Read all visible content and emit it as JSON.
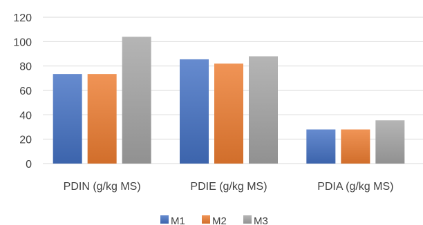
{
  "chart_data": {
    "type": "bar",
    "title": "",
    "xlabel": "",
    "ylabel": "",
    "categories": [
      "PDIN (g/kg MS)",
      "PDIE (g/kg MS)",
      "PDIA (g/kg MS)"
    ],
    "series": [
      {
        "name": "M1",
        "values": [
          73.5,
          85.5,
          28.0
        ],
        "color": "#4472C4"
      },
      {
        "name": "M2",
        "values": [
          73.5,
          82.0,
          28.0
        ],
        "color": "#ED7D31"
      },
      {
        "name": "M3",
        "values": [
          104.0,
          88.0,
          35.5
        ],
        "color": "#A5A5A5"
      }
    ],
    "ylim": [
      0,
      120
    ],
    "yticks": [
      0,
      20,
      40,
      60,
      80,
      100,
      120
    ],
    "grid": true,
    "legend_position": "bottom"
  }
}
